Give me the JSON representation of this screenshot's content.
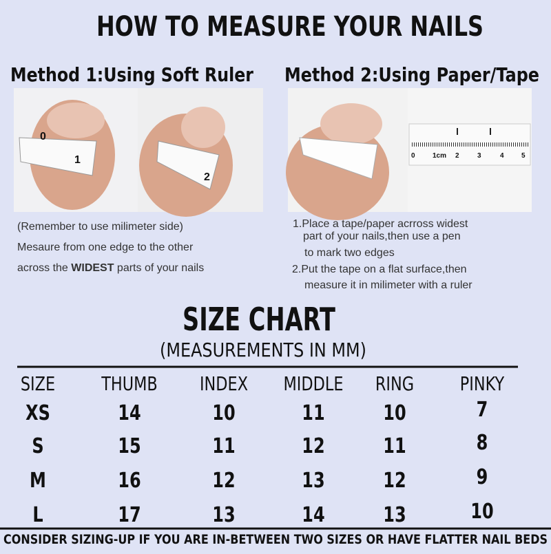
{
  "title": "HOW TO MEASURE YOUR NAILS",
  "method1": {
    "heading": "Method 1:Using Soft Ruler",
    "tape_labels": [
      "0",
      "1",
      "2"
    ],
    "lines": [
      "(Remember to use milimeter side)",
      "Mesaure from one edge to the other"
    ],
    "last_line": [
      "across the ",
      "WIDEST",
      " parts of your nails"
    ]
  },
  "method2": {
    "heading": "Method 2:Using Paper/Tape",
    "ruler_labels": [
      "0",
      "1cm",
      "2",
      "3",
      "4",
      "5"
    ],
    "lines": [
      "1.Place a tape/paper acrross widest",
      "part of your nails,then use a pen",
      "to mark two edges",
      "2.Put the tape on a flat surface,then",
      "measure it in milimeter with a ruler"
    ]
  },
  "size_chart": {
    "title": "SIZE CHART",
    "subtitle": "(MEASUREMENTS IN MM)",
    "header": [
      "SIZE",
      "THUMB",
      "INDEX",
      "MIDDLE",
      "RING",
      "PINKY"
    ],
    "rows": [
      [
        "XS",
        14,
        10,
        11,
        10,
        7
      ],
      [
        "S",
        15,
        11,
        12,
        11,
        8
      ],
      [
        "M",
        16,
        12,
        13,
        12,
        9
      ],
      [
        "L",
        17,
        13,
        14,
        13,
        10
      ]
    ]
  },
  "footer": "CONSIDER SIZING-UP IF YOU ARE IN-BETWEEN TWO SIZES OR HAVE FLATTER NAIL BEDS"
}
